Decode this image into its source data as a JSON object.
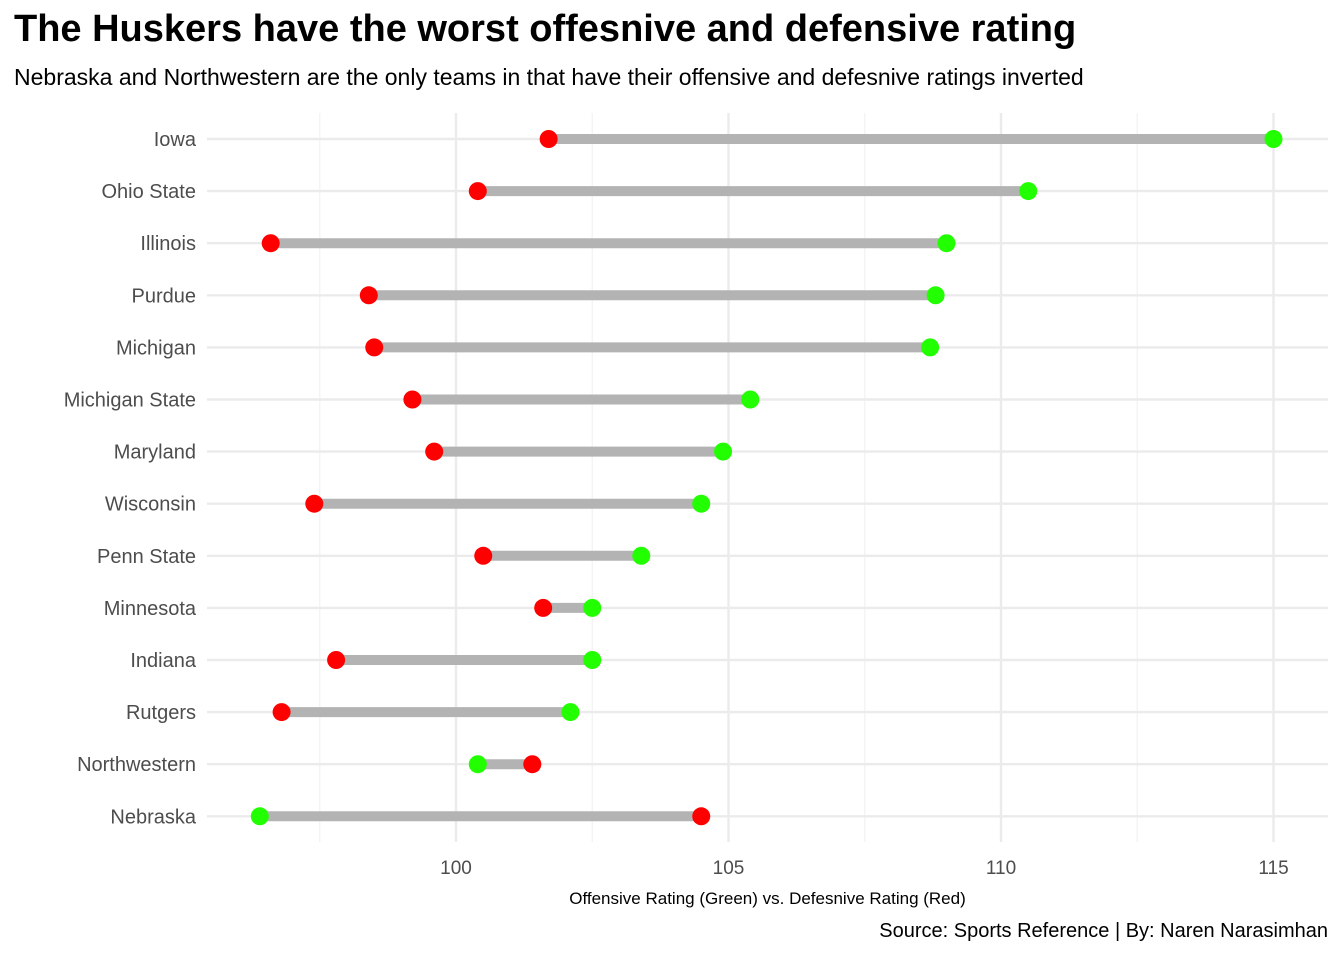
{
  "title": "The Huskers have the worst offesnive and defensive rating",
  "subtitle": "Nebraska and Northwestern are the only teams in that have their offensive and defesnive ratings inverted",
  "caption": "Source: Sports Reference | By: Naren Narasimhan",
  "chart_data": {
    "type": "dumbbell",
    "xlabel": "Offensive Rating (Green) vs. Defesnive Rating (Red)",
    "ylabel": "",
    "xlim": [
      95.5,
      116.5
    ],
    "x_ticks": [
      100,
      105,
      110,
      115
    ],
    "grid": true,
    "colors": {
      "offense": "#22ff00",
      "defense": "#ff0000",
      "segment": "#b3b3b3",
      "grid": "#ebebeb"
    },
    "teams": [
      "Iowa",
      "Ohio State",
      "Illinois",
      "Purdue",
      "Michigan",
      "Michigan State",
      "Maryland",
      "Wisconsin",
      "Penn State",
      "Minnesota",
      "Indiana",
      "Rutgers",
      "Northwestern",
      "Nebraska"
    ],
    "series": [
      {
        "key": "offense",
        "values": [
          115.0,
          110.5,
          109.0,
          108.8,
          108.7,
          105.4,
          104.9,
          104.5,
          103.4,
          102.5,
          102.5,
          102.1,
          100.4,
          96.4
        ]
      },
      {
        "key": "defense",
        "values": [
          101.7,
          100.4,
          96.6,
          98.4,
          98.5,
          99.2,
          99.6,
          97.4,
          100.5,
          101.6,
          97.8,
          96.8,
          101.4,
          104.5
        ]
      }
    ]
  }
}
